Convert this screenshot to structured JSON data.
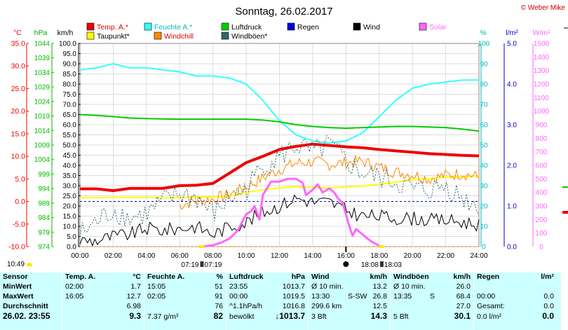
{
  "title": "Sonntag, 26.02.2017",
  "brand": "© Weber Mike",
  "legend": [
    {
      "label": "Temp. A.*",
      "color": "#ee0000"
    },
    {
      "label": "Feuchte A.*",
      "color": "#33ffff"
    },
    {
      "label": "Luftdruck",
      "color": "#00cc00"
    },
    {
      "label": "Regen",
      "color": "#0000dd"
    },
    {
      "label": "Wind",
      "color": "#000000"
    },
    {
      "label": "Solar",
      "color": "#ff66ff"
    },
    {
      "label": "Taupunkt*",
      "color": "#ffff00"
    },
    {
      "label": "Windchill",
      "color": "#ff8800"
    },
    {
      "label": "Windböen*",
      "color": "#336666"
    }
  ],
  "axis_units": {
    "temp": "°C",
    "pressure": "hPa",
    "wind": "km/h",
    "humidity": "%",
    "rain": "l/m²",
    "solar": "W/m²"
  },
  "time_marks": {
    "sunrise": "07:19",
    "moonrise": "07:19",
    "sunset": "18:08",
    "moonset": "18:03",
    "clock": "10:49"
  },
  "chart_data": {
    "type": "line",
    "x_ticks": [
      "00:00",
      "02:00",
      "04:00",
      "06:00",
      "08:00",
      "10:00",
      "12:00",
      "14:00",
      "16:00",
      "18:00",
      "20:00",
      "22:00",
      "24:00"
    ],
    "axes": {
      "temp": {
        "min": -10,
        "max": 35,
        "ticks": [
          "35.0",
          "30.0",
          "25.0",
          "20.0",
          "15.0",
          "10.0",
          "5.0",
          "0.0",
          "-5.0",
          "-10.0"
        ]
      },
      "pressure": {
        "min": 974,
        "max": 1044,
        "ticks": [
          "1044",
          "1039",
          "1034",
          "1029",
          "1024",
          "1019",
          "1014",
          "1009",
          "1004",
          "999",
          "994",
          "989",
          "984",
          "979",
          "974"
        ]
      },
      "wind": {
        "min": 0,
        "max": 100,
        "ticks": [
          "100.0",
          "95.0",
          "90.0",
          "85.0",
          "80.0",
          "75.0",
          "70.0",
          "65.0",
          "60.0",
          "55.0",
          "50.0",
          "45.0",
          "40.0",
          "35.0",
          "30.0",
          "25.0",
          "20.0",
          "15.0",
          "10.0",
          "5.0",
          "0.0"
        ]
      },
      "humidity": {
        "min": 0,
        "max": 100,
        "ticks": [
          "100",
          "90",
          "80",
          "70",
          "60",
          "50",
          "40",
          "30",
          "20",
          "10",
          "0"
        ]
      },
      "rain": {
        "min": 0,
        "max": 5,
        "ticks": [
          "5.0",
          "4.0",
          "3.0",
          "2.0",
          "1.0",
          "0.0"
        ]
      },
      "solar": {
        "min": 0,
        "max": 1500,
        "ticks": [
          "1500",
          "1400",
          "1300",
          "1200",
          "1100",
          "1000",
          "900",
          "800",
          "700",
          "600",
          "500",
          "400",
          "300",
          "200",
          "100",
          "0"
        ]
      }
    },
    "series": [
      {
        "name": "Temp. A.*",
        "axis": "temp",
        "color": "#ee0000",
        "width": 4,
        "x": [
          0,
          1,
          2,
          3,
          4,
          5,
          6,
          7,
          8,
          9,
          10,
          11,
          12,
          13,
          14,
          15,
          16,
          17,
          18,
          19,
          20,
          21,
          22,
          23,
          24
        ],
        "y": [
          2.8,
          2.8,
          2.4,
          2.9,
          2.9,
          2.9,
          3.5,
          3.6,
          4.0,
          6.3,
          8.6,
          10.0,
          11.5,
          12.2,
          12.7,
          12.4,
          12.1,
          11.9,
          11.5,
          11.2,
          10.9,
          10.6,
          10.4,
          10.2,
          10.1
        ]
      },
      {
        "name": "Feuchte A.*",
        "axis": "humidity",
        "color": "#33ffff",
        "width": 2,
        "x": [
          0,
          1,
          2,
          3,
          4,
          5,
          6,
          7,
          8,
          9,
          10,
          11,
          12,
          13,
          14,
          15,
          16,
          17,
          18,
          19,
          20,
          21,
          22,
          23,
          24
        ],
        "y": [
          87,
          88,
          90,
          88,
          88,
          87,
          86,
          84,
          84,
          83,
          80,
          72,
          62,
          55,
          52,
          51,
          52,
          56,
          64,
          72,
          78,
          80,
          81,
          82,
          82
        ]
      },
      {
        "name": "Luftdruck",
        "axis": "pressure",
        "color": "#00cc00",
        "width": 2,
        "x": [
          0,
          1,
          2,
          3,
          4,
          5,
          6,
          7,
          8,
          9,
          10,
          11,
          12,
          13,
          14,
          15,
          16,
          17,
          18,
          19,
          20,
          21,
          22,
          23,
          24
        ],
        "y": [
          1019.5,
          1019.2,
          1018.8,
          1018.3,
          1018.1,
          1018.0,
          1017.9,
          1017.9,
          1017.9,
          1017.9,
          1017.9,
          1017.6,
          1017.0,
          1016.0,
          1015.4,
          1015.0,
          1014.8,
          1015.0,
          1015.2,
          1015.4,
          1015.4,
          1015.2,
          1015.0,
          1014.5,
          1013.8
        ]
      },
      {
        "name": "Taupunkt*",
        "axis": "temp",
        "color": "#ffff00",
        "width": 2,
        "x": [
          0,
          1,
          2,
          3,
          4,
          5,
          6,
          7,
          8,
          9,
          10,
          11,
          12,
          13,
          14,
          15,
          16,
          17,
          18,
          19,
          20,
          21,
          22,
          23,
          24
        ],
        "y": [
          0.8,
          0.8,
          0.9,
          0.9,
          0.9,
          0.8,
          0.8,
          1.0,
          1.0,
          1.2,
          2.0,
          2.6,
          3.0,
          3.3,
          3.1,
          3.0,
          3.2,
          3.4,
          3.8,
          4.3,
          4.8,
          5.1,
          5.4,
          5.5,
          5.6
        ]
      },
      {
        "name": "Windchill",
        "axis": "temp",
        "color": "#ff8800",
        "width": 1,
        "jitter": 1.4,
        "x": [
          6,
          7,
          8,
          9,
          10,
          11,
          12,
          13,
          14,
          15,
          16,
          17,
          18,
          19,
          20,
          21,
          22,
          23,
          24
        ],
        "y": [
          -0.8,
          0.2,
          0.5,
          1.5,
          3.2,
          5.2,
          7.1,
          8.5,
          8.8,
          8.2,
          8.6,
          8.9,
          7.6,
          6.5,
          6.0,
          5.0,
          5.8,
          6.2,
          5.4
        ]
      },
      {
        "name": "Windböen*",
        "axis": "wind",
        "color": "#336666",
        "width": 1,
        "dash": "2,2",
        "jitter": 6,
        "x": [
          0,
          1,
          2,
          3,
          4,
          5,
          6,
          7,
          8,
          9,
          10,
          11,
          12,
          13,
          14,
          15,
          16,
          17,
          18,
          19,
          20,
          21,
          22,
          23,
          24
        ],
        "y": [
          6,
          12,
          18,
          14,
          16,
          22,
          26,
          24,
          16,
          24,
          28,
          40,
          44,
          50,
          46,
          50,
          42,
          36,
          34,
          32,
          28,
          28,
          30,
          24,
          20
        ]
      },
      {
        "name": "Wind",
        "axis": "wind",
        "color": "#000000",
        "width": 1,
        "jitter": 3.5,
        "x": [
          0,
          1,
          2,
          3,
          4,
          5,
          6,
          7,
          8,
          9,
          10,
          11,
          12,
          13,
          14,
          15,
          16,
          17,
          18,
          19,
          20,
          21,
          22,
          23,
          24
        ],
        "y": [
          3,
          3,
          5,
          6,
          9,
          8,
          9,
          10,
          6,
          10,
          12,
          17,
          20,
          24,
          22,
          22,
          18,
          15,
          15,
          14,
          14,
          13,
          13,
          12,
          11
        ]
      },
      {
        "name": "Solar",
        "axis": "solar",
        "color": "#ff66ff",
        "width": 3,
        "x": [
          7.3,
          8,
          8.5,
          9,
          9.5,
          10,
          10.3,
          10.5,
          10.8,
          11,
          11.5,
          12,
          12.5,
          13,
          13.4,
          13.6,
          13.8,
          14,
          14.3,
          14.6,
          15,
          15.3,
          15.5,
          15.8,
          16,
          16.2,
          16.4,
          16.6,
          17,
          17.5,
          17.8,
          18.1
        ],
        "y": [
          0,
          10,
          30,
          60,
          120,
          240,
          260,
          300,
          200,
          380,
          480,
          480,
          500,
          500,
          470,
          380,
          400,
          420,
          460,
          400,
          430,
          400,
          360,
          320,
          240,
          150,
          80,
          130,
          90,
          40,
          20,
          0
        ]
      }
    ],
    "reference_lines": [
      {
        "axis": "temp",
        "value": 0.0,
        "color": "#0000cc",
        "dash": "3,3"
      },
      {
        "axis": "temp",
        "value": -10.0,
        "color": "#ffaa00",
        "dash": "3,3"
      }
    ]
  },
  "table": {
    "sensor": {
      "header": "Sensor",
      "rows": [
        "MinWert",
        "MaxWert",
        "Durchschnitt",
        "26.02. 23:55"
      ]
    },
    "temp": {
      "header": "Temp. A.",
      "unit": "°C",
      "rows": [
        [
          "02:00",
          "1.7"
        ],
        [
          "16:05",
          "12.7"
        ],
        [
          "",
          "6.98"
        ],
        [
          "",
          "9.3"
        ]
      ]
    },
    "humidity": {
      "header": "Feuchte A.",
      "unit": "%",
      "rows": [
        [
          "15:05",
          "51"
        ],
        [
          "02:05",
          "91"
        ],
        [
          "",
          "76"
        ],
        [
          "7.37 g/m³",
          "82"
        ]
      ]
    },
    "pressure": {
      "header": "Luftdruck",
      "unit": "hPa",
      "rows": [
        [
          "23:55",
          "1013.7"
        ],
        [
          "00:00",
          "1019.5"
        ],
        [
          "^1.1hPa/h",
          "1016.8"
        ],
        [
          "bewölkt",
          "↓1013.7"
        ]
      ]
    },
    "wind": {
      "header": "Wind",
      "unit": "km/h",
      "rows": [
        [
          "Ø 10 min.",
          "",
          "13.2"
        ],
        [
          "13:30",
          "S-SW",
          "26.8"
        ],
        [
          "299.6 km",
          "",
          "12.5"
        ],
        [
          "3 Bft",
          "",
          "14.3"
        ]
      ]
    },
    "gust": {
      "header": "Windböen",
      "unit": "km/h",
      "rows": [
        [
          "Ø 10 min.",
          "",
          "26.0"
        ],
        [
          "13:35",
          "S",
          "68.4"
        ],
        [
          "",
          "",
          "27.0"
        ],
        [
          "5 Bft",
          "",
          "30.1"
        ]
      ]
    },
    "rain": {
      "header": "Regen",
      "unit": "l/m²",
      "rows": [
        [
          "",
          ""
        ],
        [
          "00:00",
          "0.0"
        ],
        [
          "Gesamt:",
          "0.0"
        ],
        [
          "0.0 l/m²",
          "0.0"
        ]
      ]
    }
  }
}
